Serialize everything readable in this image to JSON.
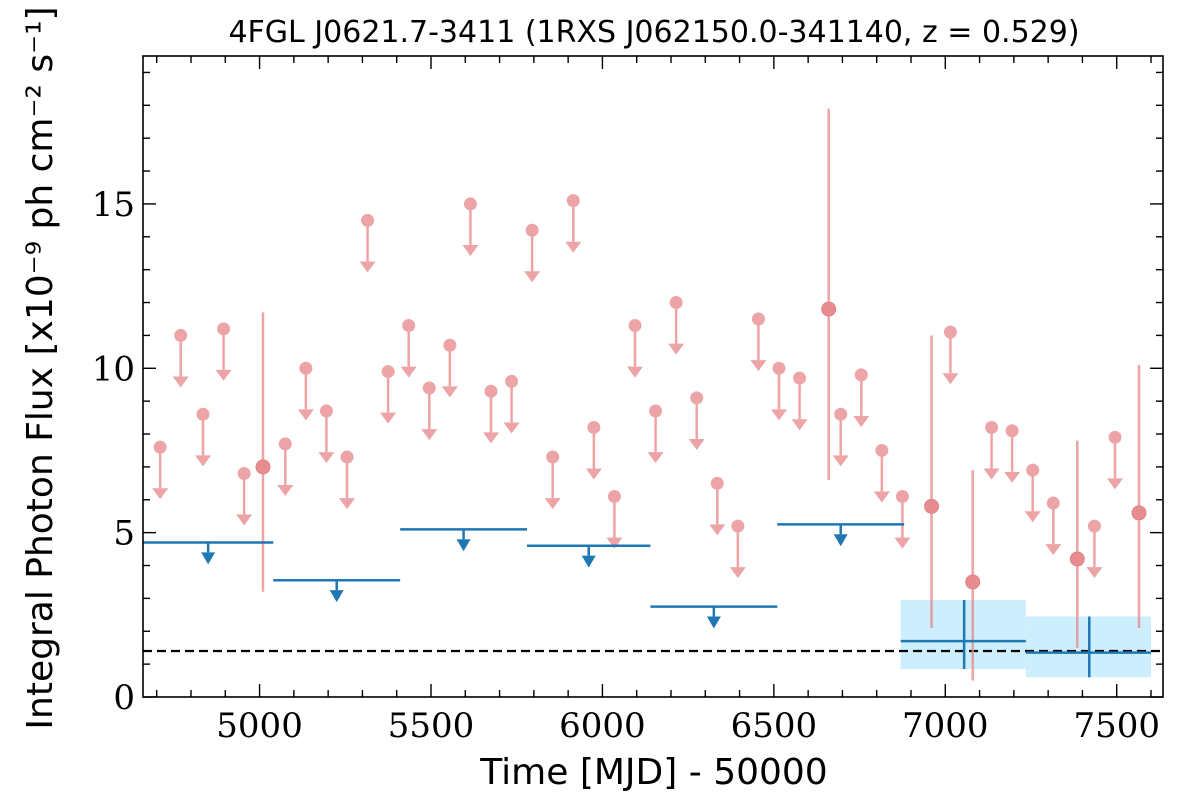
{
  "chart_data": {
    "type": "scatter",
    "title": "4FGL J0621.7-3411 (1RXS J062150.0-341140, z = 0.529)",
    "xlabel": "Time [MJD] - 50000",
    "ylabel": "Integral Photon Flux [x10⁻⁹ ph cm⁻² s⁻¹]",
    "xlim": [
      4660,
      7635
    ],
    "ylim": [
      0,
      19.5
    ],
    "xticks": [
      5000,
      5500,
      6000,
      6500,
      7000,
      7500
    ],
    "xtick_labels": [
      "5000",
      "5500",
      "6000",
      "6500",
      "7000",
      "7500"
    ],
    "yticks": [
      0,
      5,
      10,
      15
    ],
    "ytick_labels": [
      "0",
      "5",
      "10",
      "15"
    ],
    "grid": false,
    "colors": {
      "short_bins": "#e7868a",
      "long_bins": "#1f77b4",
      "long_band": "#cdeefc",
      "reference_line": "#000000"
    },
    "series": [
      {
        "style": "upper_limits",
        "x": [
          4710,
          4770,
          4835,
          4895,
          4955,
          5075,
          5135,
          5195,
          5255,
          5315,
          5375,
          5435,
          5495,
          5555,
          5615,
          5675,
          5735,
          5795,
          5855,
          5915,
          5975,
          6035,
          6095,
          6155,
          6215,
          6275,
          6335,
          6395,
          6455,
          6515,
          6575,
          6695,
          6755,
          6815,
          6875,
          7015,
          7135,
          7195,
          7255,
          7315,
          7435,
          7495
        ],
        "y": [
          7.6,
          11.0,
          8.6,
          11.2,
          6.8,
          7.7,
          10.0,
          8.7,
          7.3,
          14.5,
          9.9,
          11.3,
          9.4,
          10.7,
          15.0,
          9.3,
          9.6,
          14.2,
          7.3,
          15.1,
          8.2,
          6.1,
          11.3,
          8.7,
          12.0,
          9.1,
          6.5,
          5.2,
          11.5,
          10.0,
          9.7,
          8.6,
          9.8,
          7.5,
          6.1,
          11.1,
          8.2,
          8.1,
          6.9,
          5.9,
          5.2,
          7.9
        ]
      },
      {
        "style": "detections",
        "x": [
          5010,
          6660,
          6960,
          7080,
          7385,
          7565
        ],
        "y": [
          7.0,
          11.8,
          5.8,
          3.5,
          4.2,
          5.6
        ],
        "y_low": [
          3.2,
          6.6,
          2.1,
          0.5,
          1.5,
          2.1
        ],
        "y_high": [
          11.7,
          17.9,
          11.0,
          6.9,
          7.8,
          10.1
        ]
      },
      {
        "style": "long_bin_upper_limits",
        "x_low": [
          4660,
          5040,
          5410,
          5780,
          6140,
          6510
        ],
        "x_high": [
          5040,
          5410,
          5780,
          6140,
          6510,
          6880
        ],
        "y": [
          4.7,
          3.55,
          5.1,
          4.6,
          2.75,
          5.25
        ]
      },
      {
        "style": "long_bin_detections",
        "x": [
          7055,
          7420
        ],
        "x_low": [
          6870,
          7235
        ],
        "x_high": [
          7235,
          7600
        ],
        "y": [
          1.7,
          1.35
        ],
        "y_low": [
          0.85,
          0.6
        ],
        "y_high": [
          2.95,
          2.45
        ]
      }
    ],
    "reference_line": {
      "y": 1.4,
      "style": "dashed"
    }
  }
}
